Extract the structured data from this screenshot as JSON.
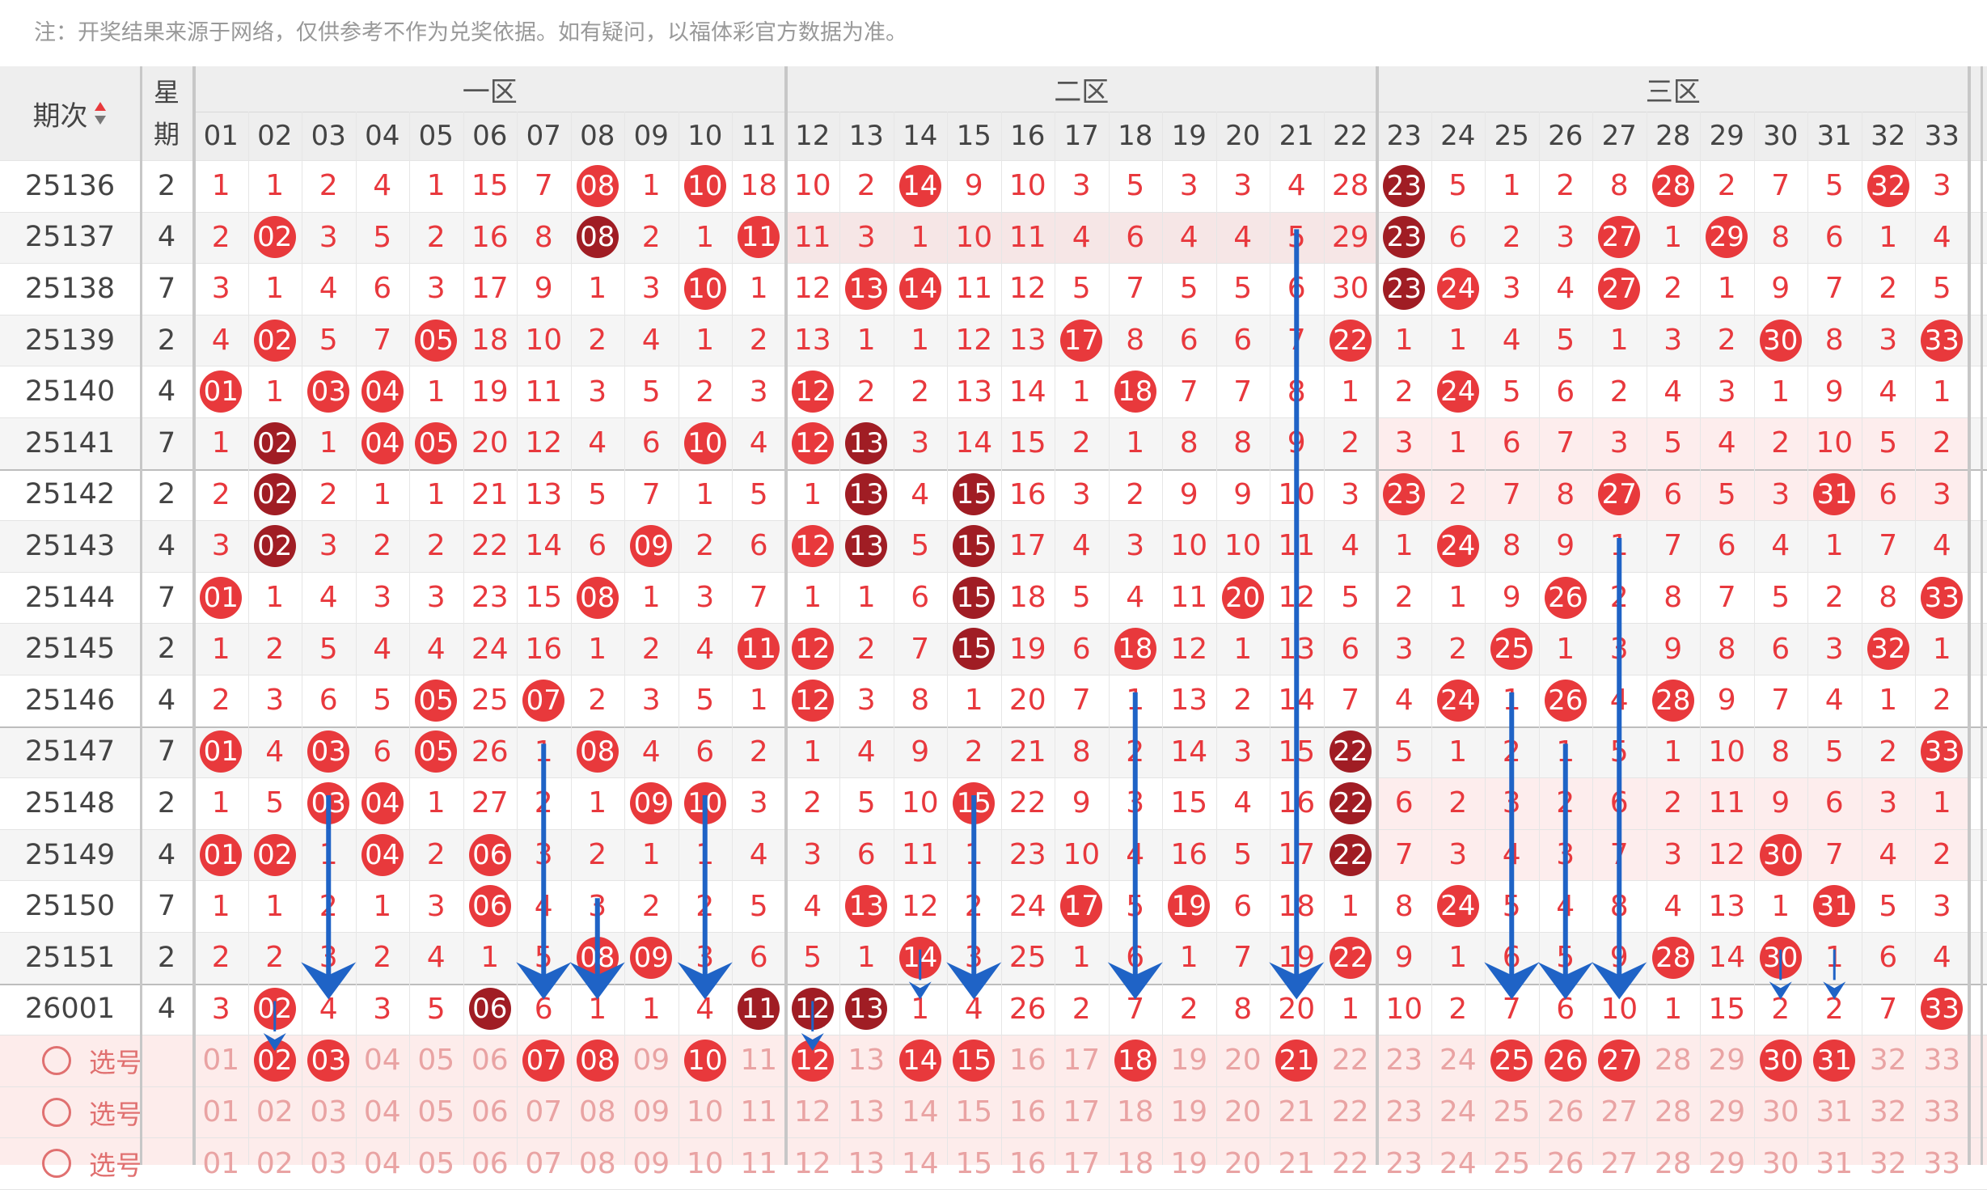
{
  "notice": "注：开奖结果来源于网络，仅供参考不作为兑奖依据。如有疑问，以福体彩官方数据为准。",
  "header": {
    "period_label": "期次",
    "weekday_label": "星期",
    "sort_icon": "sort-up-down-icon",
    "zones": [
      "一区",
      "二区",
      "三区"
    ],
    "numbers": [
      "01",
      "02",
      "03",
      "04",
      "05",
      "06",
      "07",
      "08",
      "09",
      "10",
      "11",
      "12",
      "13",
      "14",
      "15",
      "16",
      "17",
      "18",
      "19",
      "20",
      "21",
      "22",
      "23",
      "24",
      "25",
      "26",
      "27",
      "28",
      "29",
      "30",
      "31",
      "32",
      "33"
    ]
  },
  "colors": {
    "hit": "#e8393c",
    "repeat": "#a01d24",
    "text": "#e8383d",
    "arrow": "#1f63c6"
  },
  "rows": [
    {
      "period": "25136",
      "weekday": "2",
      "cells": [
        "1",
        "1",
        "2",
        "4",
        "1",
        "15",
        "7",
        "08",
        "1",
        "10",
        "18",
        "10",
        "2",
        "14",
        "9",
        "10",
        "3",
        "5",
        "3",
        "3",
        "4",
        "28",
        "23",
        "5",
        "1",
        "2",
        "8",
        "28",
        "2",
        "7",
        "5",
        "32",
        "3"
      ],
      "balls": [
        0,
        0,
        0,
        0,
        0,
        0,
        0,
        1,
        0,
        1,
        0,
        0,
        0,
        1,
        0,
        0,
        0,
        0,
        0,
        0,
        0,
        0,
        2,
        0,
        0,
        0,
        0,
        1,
        0,
        0,
        0,
        1,
        0
      ]
    },
    {
      "period": "25137",
      "weekday": "4",
      "cells": [
        "2",
        "02",
        "3",
        "5",
        "2",
        "16",
        "8",
        "08",
        "2",
        "1",
        "11",
        "11",
        "3",
        "1",
        "10",
        "11",
        "4",
        "6",
        "4",
        "4",
        "5",
        "29",
        "23",
        "6",
        "2",
        "3",
        "27",
        "1",
        "29",
        "8",
        "6",
        "1",
        "4"
      ],
      "balls": [
        0,
        1,
        0,
        0,
        0,
        0,
        0,
        2,
        0,
        0,
        1,
        0,
        0,
        0,
        0,
        0,
        0,
        0,
        0,
        0,
        0,
        0,
        2,
        0,
        0,
        0,
        1,
        0,
        1,
        0,
        0,
        0,
        0
      ]
    },
    {
      "period": "25138",
      "weekday": "7",
      "cells": [
        "3",
        "1",
        "4",
        "6",
        "3",
        "17",
        "9",
        "1",
        "3",
        "10",
        "1",
        "12",
        "13",
        "14",
        "11",
        "12",
        "5",
        "7",
        "5",
        "5",
        "6",
        "30",
        "23",
        "24",
        "3",
        "4",
        "27",
        "2",
        "1",
        "9",
        "7",
        "2",
        "5"
      ],
      "balls": [
        0,
        0,
        0,
        0,
        0,
        0,
        0,
        0,
        0,
        1,
        0,
        0,
        1,
        1,
        0,
        0,
        0,
        0,
        0,
        0,
        0,
        0,
        2,
        1,
        0,
        0,
        1,
        0,
        0,
        0,
        0,
        0,
        0
      ]
    },
    {
      "period": "25139",
      "weekday": "2",
      "cells": [
        "4",
        "02",
        "5",
        "7",
        "05",
        "18",
        "10",
        "2",
        "4",
        "1",
        "2",
        "13",
        "1",
        "1",
        "12",
        "13",
        "17",
        "8",
        "6",
        "6",
        "7",
        "22",
        "1",
        "1",
        "4",
        "5",
        "1",
        "3",
        "2",
        "30",
        "8",
        "3",
        "33"
      ],
      "balls": [
        0,
        1,
        0,
        0,
        1,
        0,
        0,
        0,
        0,
        0,
        0,
        0,
        0,
        0,
        0,
        0,
        1,
        0,
        0,
        0,
        0,
        1,
        0,
        0,
        0,
        0,
        0,
        0,
        0,
        1,
        0,
        0,
        1
      ]
    },
    {
      "period": "25140",
      "weekday": "4",
      "cells": [
        "01",
        "1",
        "03",
        "04",
        "1",
        "19",
        "11",
        "3",
        "5",
        "2",
        "3",
        "12",
        "2",
        "2",
        "13",
        "14",
        "1",
        "18",
        "7",
        "7",
        "8",
        "1",
        "2",
        "24",
        "5",
        "6",
        "2",
        "4",
        "3",
        "1",
        "9",
        "4",
        "1"
      ],
      "balls": [
        1,
        0,
        1,
        1,
        0,
        0,
        0,
        0,
        0,
        0,
        0,
        1,
        0,
        0,
        0,
        0,
        0,
        1,
        0,
        0,
        0,
        0,
        0,
        1,
        0,
        0,
        0,
        0,
        0,
        0,
        0,
        0,
        0
      ]
    },
    {
      "period": "25141",
      "weekday": "7",
      "cells": [
        "1",
        "02",
        "1",
        "04",
        "05",
        "20",
        "12",
        "4",
        "6",
        "10",
        "4",
        "12",
        "13",
        "3",
        "14",
        "15",
        "2",
        "1",
        "8",
        "8",
        "9",
        "2",
        "3",
        "1",
        "6",
        "7",
        "3",
        "5",
        "4",
        "2",
        "10",
        "5",
        "2"
      ],
      "balls": [
        0,
        2,
        0,
        1,
        1,
        0,
        0,
        0,
        0,
        1,
        0,
        1,
        2,
        0,
        0,
        0,
        0,
        0,
        0,
        0,
        0,
        0,
        0,
        0,
        0,
        0,
        0,
        0,
        0,
        0,
        0,
        0,
        0
      ]
    },
    {
      "period": "25142",
      "weekday": "2",
      "cells": [
        "2",
        "02",
        "2",
        "1",
        "1",
        "21",
        "13",
        "5",
        "7",
        "1",
        "5",
        "1",
        "13",
        "4",
        "15",
        "16",
        "3",
        "2",
        "9",
        "9",
        "10",
        "3",
        "23",
        "2",
        "7",
        "8",
        "27",
        "6",
        "5",
        "3",
        "31",
        "6",
        "3"
      ],
      "balls": [
        0,
        2,
        0,
        0,
        0,
        0,
        0,
        0,
        0,
        0,
        0,
        0,
        2,
        0,
        2,
        0,
        0,
        0,
        0,
        0,
        0,
        0,
        1,
        0,
        0,
        0,
        1,
        0,
        0,
        0,
        1,
        0,
        0
      ]
    },
    {
      "period": "25143",
      "weekday": "4",
      "cells": [
        "3",
        "02",
        "3",
        "2",
        "2",
        "22",
        "14",
        "6",
        "09",
        "2",
        "6",
        "12",
        "13",
        "5",
        "15",
        "17",
        "4",
        "3",
        "10",
        "10",
        "11",
        "4",
        "1",
        "24",
        "8",
        "9",
        "1",
        "7",
        "6",
        "4",
        "1",
        "7",
        "4"
      ],
      "balls": [
        0,
        2,
        0,
        0,
        0,
        0,
        0,
        0,
        1,
        0,
        0,
        1,
        2,
        0,
        2,
        0,
        0,
        0,
        0,
        0,
        0,
        0,
        0,
        1,
        0,
        0,
        0,
        0,
        0,
        0,
        0,
        0,
        0
      ]
    },
    {
      "period": "25144",
      "weekday": "7",
      "cells": [
        "01",
        "1",
        "4",
        "3",
        "3",
        "23",
        "15",
        "08",
        "1",
        "3",
        "7",
        "1",
        "1",
        "6",
        "15",
        "18",
        "5",
        "4",
        "11",
        "20",
        "12",
        "5",
        "2",
        "1",
        "9",
        "26",
        "2",
        "8",
        "7",
        "5",
        "2",
        "8",
        "33"
      ],
      "balls": [
        1,
        0,
        0,
        0,
        0,
        0,
        0,
        1,
        0,
        0,
        0,
        0,
        0,
        0,
        2,
        0,
        0,
        0,
        0,
        1,
        0,
        0,
        0,
        0,
        0,
        1,
        0,
        0,
        0,
        0,
        0,
        0,
        1
      ]
    },
    {
      "period": "25145",
      "weekday": "2",
      "cells": [
        "1",
        "2",
        "5",
        "4",
        "4",
        "24",
        "16",
        "1",
        "2",
        "4",
        "11",
        "12",
        "2",
        "7",
        "15",
        "19",
        "6",
        "18",
        "12",
        "1",
        "13",
        "6",
        "3",
        "2",
        "25",
        "1",
        "3",
        "9",
        "8",
        "6",
        "3",
        "32",
        "1"
      ],
      "balls": [
        0,
        0,
        0,
        0,
        0,
        0,
        0,
        0,
        0,
        0,
        1,
        1,
        0,
        0,
        2,
        0,
        0,
        1,
        0,
        0,
        0,
        0,
        0,
        0,
        1,
        0,
        0,
        0,
        0,
        0,
        0,
        1,
        0
      ]
    },
    {
      "period": "25146",
      "weekday": "4",
      "cells": [
        "2",
        "3",
        "6",
        "5",
        "05",
        "25",
        "07",
        "2",
        "3",
        "5",
        "1",
        "12",
        "3",
        "8",
        "1",
        "20",
        "7",
        "1",
        "13",
        "2",
        "14",
        "7",
        "4",
        "24",
        "1",
        "26",
        "4",
        "28",
        "9",
        "7",
        "4",
        "1",
        "2"
      ],
      "balls": [
        0,
        0,
        0,
        0,
        1,
        0,
        1,
        0,
        0,
        0,
        0,
        1,
        0,
        0,
        0,
        0,
        0,
        0,
        0,
        0,
        0,
        0,
        0,
        1,
        0,
        1,
        0,
        1,
        0,
        0,
        0,
        0,
        0
      ]
    },
    {
      "period": "25147",
      "weekday": "7",
      "cells": [
        "01",
        "4",
        "03",
        "6",
        "05",
        "26",
        "1",
        "08",
        "4",
        "6",
        "2",
        "1",
        "4",
        "9",
        "2",
        "21",
        "8",
        "2",
        "14",
        "3",
        "15",
        "22",
        "5",
        "1",
        "2",
        "1",
        "5",
        "1",
        "10",
        "8",
        "5",
        "2",
        "33"
      ],
      "balls": [
        1,
        0,
        1,
        0,
        1,
        0,
        0,
        1,
        0,
        0,
        0,
        0,
        0,
        0,
        0,
        0,
        0,
        0,
        0,
        0,
        0,
        2,
        0,
        0,
        0,
        0,
        0,
        0,
        0,
        0,
        0,
        0,
        1
      ]
    },
    {
      "period": "25148",
      "weekday": "2",
      "cells": [
        "1",
        "5",
        "03",
        "04",
        "1",
        "27",
        "2",
        "1",
        "09",
        "10",
        "3",
        "2",
        "5",
        "10",
        "15",
        "22",
        "9",
        "3",
        "15",
        "4",
        "16",
        "22",
        "6",
        "2",
        "3",
        "2",
        "6",
        "2",
        "11",
        "9",
        "6",
        "3",
        "1"
      ],
      "balls": [
        0,
        0,
        1,
        1,
        0,
        0,
        0,
        0,
        1,
        1,
        0,
        0,
        0,
        0,
        1,
        0,
        0,
        0,
        0,
        0,
        0,
        2,
        0,
        0,
        0,
        0,
        0,
        0,
        0,
        0,
        0,
        0,
        0
      ]
    },
    {
      "period": "25149",
      "weekday": "4",
      "cells": [
        "01",
        "02",
        "1",
        "04",
        "2",
        "06",
        "3",
        "2",
        "1",
        "1",
        "4",
        "3",
        "6",
        "11",
        "1",
        "23",
        "10",
        "4",
        "16",
        "5",
        "17",
        "22",
        "7",
        "3",
        "4",
        "3",
        "7",
        "3",
        "12",
        "30",
        "7",
        "4",
        "2"
      ],
      "balls": [
        1,
        1,
        0,
        1,
        0,
        1,
        0,
        0,
        0,
        0,
        0,
        0,
        0,
        0,
        0,
        0,
        0,
        0,
        0,
        0,
        0,
        2,
        0,
        0,
        0,
        0,
        0,
        0,
        0,
        1,
        0,
        0,
        0
      ]
    },
    {
      "period": "25150",
      "weekday": "7",
      "cells": [
        "1",
        "1",
        "2",
        "1",
        "3",
        "06",
        "4",
        "3",
        "2",
        "2",
        "5",
        "4",
        "13",
        "12",
        "2",
        "24",
        "17",
        "5",
        "19",
        "6",
        "18",
        "1",
        "8",
        "24",
        "5",
        "4",
        "8",
        "4",
        "13",
        "1",
        "31",
        "5",
        "3"
      ],
      "balls": [
        0,
        0,
        0,
        0,
        0,
        1,
        0,
        0,
        0,
        0,
        0,
        0,
        1,
        0,
        0,
        0,
        1,
        0,
        1,
        0,
        0,
        0,
        0,
        1,
        0,
        0,
        0,
        0,
        0,
        0,
        1,
        0,
        0
      ]
    },
    {
      "period": "25151",
      "weekday": "2",
      "cells": [
        "2",
        "2",
        "3",
        "2",
        "4",
        "1",
        "5",
        "08",
        "09",
        "3",
        "6",
        "5",
        "1",
        "14",
        "3",
        "25",
        "1",
        "6",
        "1",
        "7",
        "19",
        "22",
        "9",
        "1",
        "6",
        "5",
        "9",
        "28",
        "14",
        "30",
        "1",
        "6",
        "4"
      ],
      "balls": [
        0,
        0,
        0,
        0,
        0,
        0,
        0,
        1,
        1,
        0,
        0,
        0,
        0,
        1,
        0,
        0,
        0,
        0,
        0,
        0,
        0,
        1,
        0,
        0,
        0,
        0,
        0,
        1,
        0,
        1,
        0,
        0,
        0
      ]
    },
    {
      "period": "26001",
      "weekday": "4",
      "cells": [
        "3",
        "02",
        "4",
        "3",
        "5",
        "06",
        "6",
        "1",
        "1",
        "4",
        "11",
        "12",
        "13",
        "1",
        "4",
        "26",
        "2",
        "7",
        "2",
        "8",
        "20",
        "1",
        "10",
        "2",
        "7",
        "6",
        "10",
        "1",
        "15",
        "2",
        "2",
        "7",
        "33"
      ],
      "balls": [
        0,
        1,
        0,
        0,
        0,
        2,
        0,
        0,
        0,
        0,
        2,
        2,
        2,
        0,
        0,
        0,
        0,
        0,
        0,
        0,
        0,
        0,
        0,
        0,
        0,
        0,
        0,
        0,
        0,
        0,
        0,
        0,
        1
      ]
    }
  ],
  "pick_rows": [
    {
      "label": "选号",
      "selected": [
        2,
        3,
        7,
        8,
        10,
        12,
        14,
        15,
        18,
        21,
        25,
        26,
        27,
        30,
        31
      ]
    },
    {
      "label": "选号",
      "selected": []
    },
    {
      "label": "选号",
      "selected": []
    }
  ],
  "arrows": [
    [
      21,
      1,
      16
    ],
    [
      18,
      10,
      16
    ],
    [
      27,
      7,
      16
    ],
    [
      25,
      10,
      16
    ],
    [
      26,
      11,
      16
    ],
    [
      7,
      11,
      16
    ],
    [
      3,
      12,
      16
    ],
    [
      10,
      12,
      16
    ],
    [
      15,
      12,
      16
    ],
    [
      8,
      14,
      16
    ],
    [
      14,
      15,
      16
    ],
    [
      30,
      15,
      16
    ],
    [
      31,
      15,
      16
    ],
    [
      2,
      16,
      17
    ],
    [
      12,
      16,
      17
    ]
  ]
}
